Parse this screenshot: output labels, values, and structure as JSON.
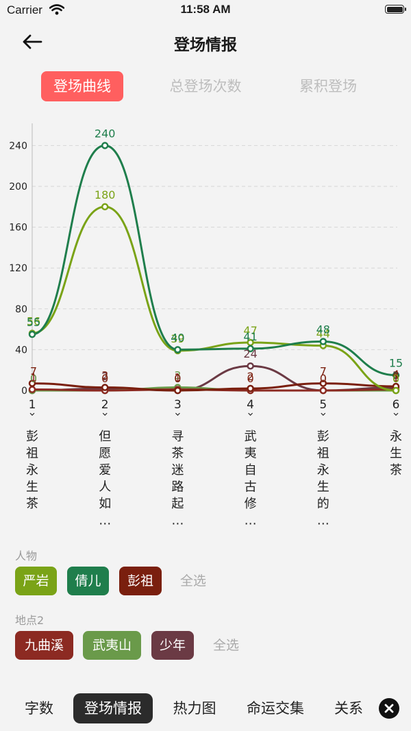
{
  "status": {
    "carrier": "Carrier",
    "time": "11:58 AM"
  },
  "nav": {
    "title": "登场情报"
  },
  "segments": [
    {
      "label": "登场曲线",
      "active": true
    },
    {
      "label": "总登场次数",
      "active": false
    },
    {
      "label": "累积登场",
      "active": false
    }
  ],
  "chart_data": {
    "type": "line",
    "x": [
      "1",
      "2",
      "3",
      "4",
      "5",
      "6"
    ],
    "x_names": [
      "彭祖永生茶",
      "但愿爱人如…",
      "寻茶迷路起…",
      "武夷自古修…",
      "彭祖永生的…",
      "永生茶"
    ],
    "ylim": [
      0,
      260
    ],
    "yticks": [
      0,
      40,
      80,
      120,
      160,
      200,
      240
    ],
    "grid": true,
    "series": [
      {
        "name": "严岩",
        "color": "#7aa317",
        "values": [
          56,
          180,
          39,
          47,
          44,
          0
        ]
      },
      {
        "name": "倩儿",
        "color": "#1f7e4c",
        "values": [
          55,
          240,
          40,
          41,
          48,
          15
        ]
      },
      {
        "name": "彭祖",
        "color": "#7a1f0e",
        "values": [
          7,
          3,
          0,
          2,
          7,
          4
        ]
      },
      {
        "name": "九曲溪",
        "color": "#8c2a22",
        "values": [
          1,
          0,
          1,
          0,
          0,
          1
        ]
      },
      {
        "name": "武夷山",
        "color": "#6a9a4a",
        "values": [
          0,
          0,
          3,
          0,
          0,
          0
        ]
      },
      {
        "name": "少年",
        "color": "#6b3a44",
        "values": [
          0,
          2,
          0,
          24,
          0,
          3
        ]
      }
    ]
  },
  "filters": {
    "people_label": "人物",
    "people": [
      {
        "label": "严岩",
        "color": "#7aa317"
      },
      {
        "label": "倩儿",
        "color": "#1f7e4c"
      },
      {
        "label": "彭祖",
        "color": "#7a1f0e"
      }
    ],
    "people_all": "全选",
    "places_label": "地点2",
    "places": [
      {
        "label": "九曲溪",
        "color": "#8c2a22"
      },
      {
        "label": "武夷山",
        "color": "#6a9a4a"
      },
      {
        "label": "少年",
        "color": "#6b3a44"
      }
    ],
    "places_all": "全选"
  },
  "bottom_tabs": [
    {
      "label": "字数",
      "active": false
    },
    {
      "label": "登场情报",
      "active": true
    },
    {
      "label": "热力图",
      "active": false
    },
    {
      "label": "命运交集",
      "active": false
    },
    {
      "label": "关系",
      "active": false
    }
  ],
  "icons": {
    "back": "arrow-left-icon",
    "close": "close-icon",
    "wifi": "wifi-icon",
    "battery": "battery-icon"
  }
}
